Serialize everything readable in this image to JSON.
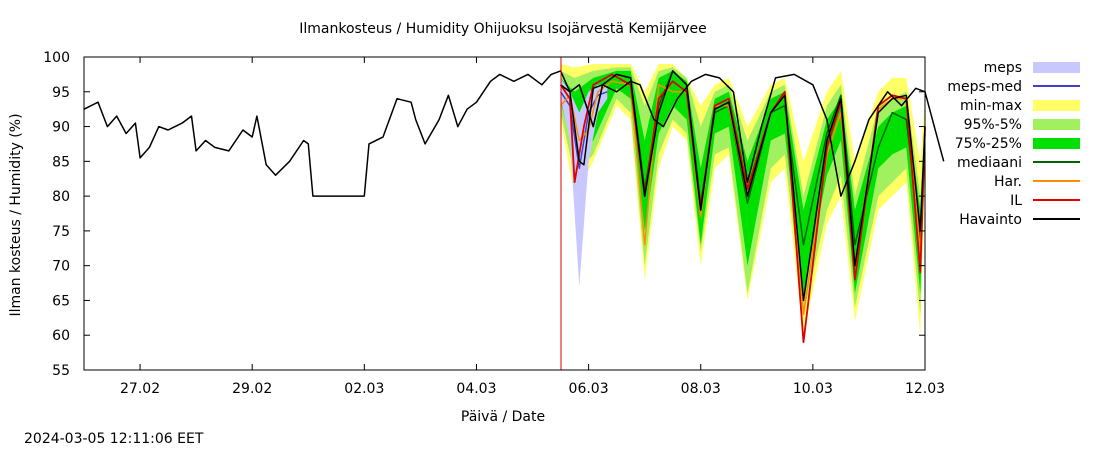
{
  "chart_data": {
    "type": "line",
    "title": "Ilmankosteus / Humidity  Ohijuoksu Isojärvestä Kemijärvee",
    "xlabel": "Päivä / Date",
    "ylabel": "Ilman kosteus / Humidity (%)",
    "ylim": [
      55,
      100
    ],
    "yticks": [
      "55",
      "60",
      "65",
      "70",
      "75",
      "80",
      "85",
      "90",
      "95",
      "100"
    ],
    "xlim": [
      "2024-02-26T00:00",
      "2024-03-12T00:00"
    ],
    "xticks": [
      {
        "date": "2024-02-27T00:00",
        "label": "27.02"
      },
      {
        "date": "2024-02-29T00:00",
        "label": "29.02"
      },
      {
        "date": "2024-03-02T00:00",
        "label": "02.03"
      },
      {
        "date": "2024-03-04T00:00",
        "label": "04.03"
      },
      {
        "date": "2024-03-06T00:00",
        "label": "06.03"
      },
      {
        "date": "2024-03-08T00:00",
        "label": "08.03"
      },
      {
        "date": "2024-03-10T00:00",
        "label": "10.03"
      },
      {
        "date": "2024-03-12T00:00",
        "label": "12.03"
      }
    ],
    "now_marker": "2024-03-05T12:11",
    "grid": false,
    "legend_position": "right",
    "legend": [
      {
        "label": "meps",
        "kind": "band",
        "color": "#c8c8ff"
      },
      {
        "label": "meps-med",
        "kind": "line",
        "color": "#4040c8"
      },
      {
        "label": "min-max",
        "kind": "band",
        "color": "#ffff66"
      },
      {
        "label": "95%-5%",
        "kind": "band",
        "color": "#a0f060"
      },
      {
        "label": "75%-25%",
        "kind": "band",
        "color": "#00e000"
      },
      {
        "label": "mediaani",
        "kind": "line",
        "color": "#006400"
      },
      {
        "label": "Har.",
        "kind": "line",
        "color": "#ff8c00"
      },
      {
        "label": "IL",
        "kind": "line",
        "color": "#e00000"
      },
      {
        "label": "Havainto",
        "kind": "line",
        "color": "#000000"
      }
    ],
    "havainto": [
      [
        "2024-02-26T00:00",
        92.5
      ],
      [
        "2024-02-26T06:00",
        93.5
      ],
      [
        "2024-02-26T10:00",
        90
      ],
      [
        "2024-02-26T14:00",
        91.5
      ],
      [
        "2024-02-26T18:00",
        89
      ],
      [
        "2024-02-26T22:00",
        90.5
      ],
      [
        "2024-02-27T00:00",
        85.5
      ],
      [
        "2024-02-27T04:00",
        87
      ],
      [
        "2024-02-27T08:00",
        90
      ],
      [
        "2024-02-27T12:00",
        89.5
      ],
      [
        "2024-02-27T18:00",
        90.5
      ],
      [
        "2024-02-27T22:00",
        91.5
      ],
      [
        "2024-02-28T00:00",
        86.5
      ],
      [
        "2024-02-28T04:00",
        88
      ],
      [
        "2024-02-28T08:00",
        87
      ],
      [
        "2024-02-28T14:00",
        86.5
      ],
      [
        "2024-02-28T20:00",
        89.5
      ],
      [
        "2024-02-29T00:00",
        88.5
      ],
      [
        "2024-02-29T02:00",
        91.5
      ],
      [
        "2024-02-29T06:00",
        84.5
      ],
      [
        "2024-02-29T10:00",
        83
      ],
      [
        "2024-02-29T16:00",
        85
      ],
      [
        "2024-02-29T22:00",
        88
      ],
      [
        "2024-03-01T00:00",
        87.5
      ],
      [
        "2024-03-01T02:00",
        80
      ],
      [
        "2024-03-01T12:00",
        80
      ],
      [
        "2024-03-01T22:00",
        80
      ],
      [
        "2024-03-02T00:00",
        80
      ],
      [
        "2024-03-02T02:00",
        87.5
      ],
      [
        "2024-03-02T08:00",
        88.5
      ],
      [
        "2024-03-02T14:00",
        94
      ],
      [
        "2024-03-02T20:00",
        93.5
      ],
      [
        "2024-03-02T22:00",
        91
      ],
      [
        "2024-03-03T02:00",
        87.5
      ],
      [
        "2024-03-03T08:00",
        91
      ],
      [
        "2024-03-03T12:00",
        94.5
      ],
      [
        "2024-03-03T16:00",
        90
      ],
      [
        "2024-03-03T20:00",
        92.5
      ],
      [
        "2024-03-04T00:00",
        93.5
      ],
      [
        "2024-03-04T06:00",
        96.5
      ],
      [
        "2024-03-04T10:00",
        97.5
      ],
      [
        "2024-03-04T16:00",
        96.5
      ],
      [
        "2024-03-04T22:00",
        97.5
      ],
      [
        "2024-03-05T04:00",
        96
      ],
      [
        "2024-03-05T08:00",
        97.5
      ],
      [
        "2024-03-05T12:00",
        98
      ],
      [
        "2024-03-05T16:00",
        95
      ],
      [
        "2024-03-05T18:00",
        90
      ],
      [
        "2024-03-05T20:00",
        85
      ],
      [
        "2024-03-05T22:00",
        84.5
      ],
      [
        "2024-03-06T00:00",
        90
      ],
      [
        "2024-03-06T02:00",
        95.5
      ],
      [
        "2024-03-06T06:00",
        96
      ],
      [
        "2024-03-06T12:00",
        95
      ],
      [
        "2024-03-06T18:00",
        96.5
      ],
      [
        "2024-03-06T22:00",
        96
      ],
      [
        "2024-03-07T04:00",
        91
      ],
      [
        "2024-03-07T08:00",
        90
      ],
      [
        "2024-03-07T14:00",
        94
      ],
      [
        "2024-03-07T20:00",
        96.5
      ],
      [
        "2024-03-08T02:00",
        97.5
      ],
      [
        "2024-03-08T08:00",
        97
      ],
      [
        "2024-03-08T14:00",
        95
      ],
      [
        "2024-03-08T20:00",
        82
      ],
      [
        "2024-03-09T02:00",
        90
      ],
      [
        "2024-03-09T08:00",
        97
      ],
      [
        "2024-03-09T16:00",
        97.5
      ],
      [
        "2024-03-10T00:00",
        96
      ],
      [
        "2024-03-10T06:00",
        91
      ],
      [
        "2024-03-10T12:00",
        80
      ],
      [
        "2024-03-10T18:00",
        85
      ],
      [
        "2024-03-11T00:00",
        91
      ],
      [
        "2024-03-11T08:00",
        95
      ],
      [
        "2024-03-11T14:00",
        93
      ],
      [
        "2024-03-11T20:00",
        95.5
      ],
      [
        "2024-03-12T00:00",
        95
      ],
      [
        "2024-03-12T04:00",
        90
      ],
      [
        "2024-03-12T08:00",
        85
      ]
    ],
    "mediaani": [
      [
        "2024-03-05T12:00",
        96
      ],
      [
        "2024-03-05T16:00",
        95
      ],
      [
        "2024-03-05T20:00",
        96
      ],
      [
        "2024-03-06T02:00",
        90
      ],
      [
        "2024-03-06T06:00",
        96
      ],
      [
        "2024-03-06T12:00",
        97.5
      ],
      [
        "2024-03-06T18:00",
        97
      ],
      [
        "2024-03-07T00:00",
        81
      ],
      [
        "2024-03-07T06:00",
        93
      ],
      [
        "2024-03-07T12:00",
        98
      ],
      [
        "2024-03-07T18:00",
        96
      ],
      [
        "2024-03-08T00:00",
        79
      ],
      [
        "2024-03-08T06:00",
        92
      ],
      [
        "2024-03-08T12:00",
        93
      ],
      [
        "2024-03-08T20:00",
        79
      ],
      [
        "2024-03-09T06:00",
        92
      ],
      [
        "2024-03-09T12:00",
        93
      ],
      [
        "2024-03-09T20:00",
        73
      ],
      [
        "2024-03-10T06:00",
        89
      ],
      [
        "2024-03-10T12:00",
        94.5
      ],
      [
        "2024-03-10T18:00",
        73
      ],
      [
        "2024-03-11T04:00",
        87
      ],
      [
        "2024-03-11T10:00",
        92
      ],
      [
        "2024-03-11T16:00",
        91
      ],
      [
        "2024-03-11T22:00",
        74
      ],
      [
        "2024-03-12T00:00",
        89
      ]
    ],
    "havainto_forecast": [
      [
        "2024-03-05T12:00",
        96
      ],
      [
        "2024-03-05T16:00",
        95
      ],
      [
        "2024-03-05T20:00",
        96
      ],
      [
        "2024-03-06T02:00",
        90
      ],
      [
        "2024-03-06T06:00",
        96
      ],
      [
        "2024-03-06T12:00",
        97.5
      ],
      [
        "2024-03-06T18:00",
        97
      ],
      [
        "2024-03-07T00:00",
        80
      ],
      [
        "2024-03-07T06:00",
        92
      ],
      [
        "2024-03-07T12:00",
        98
      ],
      [
        "2024-03-07T18:00",
        96
      ],
      [
        "2024-03-08T00:00",
        78
      ],
      [
        "2024-03-08T06:00",
        92.5
      ],
      [
        "2024-03-08T12:00",
        93.5
      ],
      [
        "2024-03-08T20:00",
        80
      ],
      [
        "2024-03-09T06:00",
        92
      ],
      [
        "2024-03-09T12:00",
        94.5
      ],
      [
        "2024-03-09T20:00",
        65
      ],
      [
        "2024-03-10T06:00",
        88
      ],
      [
        "2024-03-10T12:00",
        94
      ],
      [
        "2024-03-10T18:00",
        70
      ],
      [
        "2024-03-11T04:00",
        92
      ],
      [
        "2024-03-11T10:00",
        94
      ],
      [
        "2024-03-11T16:00",
        94.5
      ],
      [
        "2024-03-11T22:00",
        75
      ],
      [
        "2024-03-12T00:00",
        90
      ]
    ],
    "IL": [
      [
        "2024-03-05T12:00",
        96
      ],
      [
        "2024-03-05T16:00",
        94
      ],
      [
        "2024-03-05T18:00",
        82
      ],
      [
        "2024-03-05T22:00",
        90
      ],
      [
        "2024-03-06T02:00",
        96
      ],
      [
        "2024-03-06T10:00",
        97.5
      ],
      [
        "2024-03-06T18:00",
        96
      ],
      [
        "2024-03-07T00:00",
        80
      ],
      [
        "2024-03-07T06:00",
        94
      ],
      [
        "2024-03-07T12:00",
        96.5
      ],
      [
        "2024-03-07T18:00",
        95
      ],
      [
        "2024-03-08T00:00",
        78
      ],
      [
        "2024-03-08T06:00",
        93
      ],
      [
        "2024-03-08T12:00",
        94
      ],
      [
        "2024-03-08T20:00",
        81
      ],
      [
        "2024-03-09T06:00",
        92
      ],
      [
        "2024-03-09T12:00",
        95
      ],
      [
        "2024-03-09T20:00",
        59
      ],
      [
        "2024-03-10T06:00",
        87
      ],
      [
        "2024-03-10T12:00",
        93.5
      ],
      [
        "2024-03-10T18:00",
        68
      ],
      [
        "2024-03-11T04:00",
        93
      ],
      [
        "2024-03-11T10:00",
        94.5
      ],
      [
        "2024-03-11T16:00",
        94
      ],
      [
        "2024-03-11T22:00",
        69
      ],
      [
        "2024-03-12T00:00",
        90
      ]
    ],
    "Har": [
      [
        "2024-03-05T12:00",
        93
      ],
      [
        "2024-03-05T16:00",
        94.5
      ],
      [
        "2024-03-05T20:00",
        88
      ],
      [
        "2024-03-06T00:00",
        89.5
      ],
      [
        "2024-03-06T04:00",
        95
      ],
      [
        "2024-03-06T10:00",
        96.5
      ],
      [
        "2024-03-06T18:00",
        96
      ],
      [
        "2024-03-07T00:00",
        73
      ],
      [
        "2024-03-07T06:00",
        96
      ],
      [
        "2024-03-07T12:00",
        95
      ],
      [
        "2024-03-07T18:00",
        95
      ],
      [
        "2024-03-08T00:00",
        77
      ],
      [
        "2024-03-08T06:00",
        93
      ],
      [
        "2024-03-08T12:00",
        93
      ],
      [
        "2024-03-08T20:00",
        80
      ],
      [
        "2024-03-09T06:00",
        92
      ],
      [
        "2024-03-09T12:00",
        94.5
      ],
      [
        "2024-03-09T20:00",
        63
      ],
      [
        "2024-03-10T06:00",
        86
      ],
      [
        "2024-03-10T12:00",
        92
      ],
      [
        "2024-03-10T18:00",
        70
      ],
      [
        "2024-03-11T04:00",
        92.5
      ],
      [
        "2024-03-11T10:00",
        94
      ],
      [
        "2024-03-11T16:00",
        94
      ],
      [
        "2024-03-11T22:00",
        72
      ],
      [
        "2024-03-12T00:00",
        90
      ]
    ],
    "meps_med": [
      [
        "2024-03-05T12:00",
        95
      ],
      [
        "2024-03-05T16:00",
        93
      ],
      [
        "2024-03-05T20:00",
        84
      ],
      [
        "2024-03-06T00:00",
        92
      ],
      [
        "2024-03-06T04:00",
        94.5
      ],
      [
        "2024-03-06T08:00",
        95
      ]
    ],
    "band_minmax": [
      [
        "2024-03-05T12:00",
        91,
        99
      ],
      [
        "2024-03-05T18:00",
        80,
        98.5
      ],
      [
        "2024-03-06T02:00",
        85,
        99
      ],
      [
        "2024-03-06T12:00",
        93,
        99
      ],
      [
        "2024-03-06T18:00",
        91,
        99
      ],
      [
        "2024-03-07T00:00",
        68,
        95
      ],
      [
        "2024-03-07T06:00",
        84,
        99
      ],
      [
        "2024-03-07T12:00",
        90,
        99
      ],
      [
        "2024-03-07T18:00",
        88,
        97
      ],
      [
        "2024-03-08T00:00",
        70,
        93
      ],
      [
        "2024-03-08T06:00",
        84,
        96
      ],
      [
        "2024-03-08T12:00",
        86,
        97
      ],
      [
        "2024-03-08T20:00",
        65,
        90
      ],
      [
        "2024-03-09T06:00",
        82,
        96
      ],
      [
        "2024-03-09T12:00",
        84,
        97
      ],
      [
        "2024-03-09T20:00",
        60,
        85
      ],
      [
        "2024-03-10T06:00",
        76,
        95
      ],
      [
        "2024-03-10T12:00",
        80,
        98
      ],
      [
        "2024-03-10T18:00",
        62,
        85
      ],
      [
        "2024-03-11T04:00",
        78,
        95
      ],
      [
        "2024-03-11T10:00",
        80,
        97
      ],
      [
        "2024-03-11T16:00",
        82,
        97
      ],
      [
        "2024-03-11T22:00",
        60,
        85
      ],
      [
        "2024-03-12T00:00",
        84,
        94
      ]
    ],
    "band_95_5": [
      [
        "2024-03-05T12:00",
        92,
        98
      ],
      [
        "2024-03-05T18:00",
        83,
        97
      ],
      [
        "2024-03-06T02:00",
        86,
        98
      ],
      [
        "2024-03-06T12:00",
        94,
        98.5
      ],
      [
        "2024-03-06T18:00",
        92,
        98.5
      ],
      [
        "2024-03-07T00:00",
        70,
        93
      ],
      [
        "2024-03-07T06:00",
        86,
        98
      ],
      [
        "2024-03-07T12:00",
        91,
        98.5
      ],
      [
        "2024-03-07T18:00",
        89,
        97
      ],
      [
        "2024-03-08T00:00",
        72,
        90
      ],
      [
        "2024-03-08T06:00",
        86,
        95
      ],
      [
        "2024-03-08T12:00",
        87,
        96
      ],
      [
        "2024-03-08T20:00",
        66,
        88
      ],
      [
        "2024-03-09T06:00",
        84,
        95
      ],
      [
        "2024-03-09T12:00",
        86,
        96
      ],
      [
        "2024-03-09T20:00",
        63,
        80
      ],
      [
        "2024-03-10T06:00",
        78,
        93
      ],
      [
        "2024-03-10T12:00",
        83,
        96
      ],
      [
        "2024-03-10T18:00",
        64,
        80
      ],
      [
        "2024-03-11T04:00",
        80,
        93
      ],
      [
        "2024-03-11T10:00",
        82,
        94
      ],
      [
        "2024-03-11T16:00",
        84,
        95
      ],
      [
        "2024-03-11T22:00",
        63,
        80
      ],
      [
        "2024-03-12T00:00",
        85,
        92
      ]
    ],
    "band_75_25": [
      [
        "2024-03-05T12:00",
        93.5,
        97
      ],
      [
        "2024-03-05T18:00",
        86,
        95
      ],
      [
        "2024-03-06T02:00",
        88,
        97
      ],
      [
        "2024-03-06T12:00",
        95.5,
        98
      ],
      [
        "2024-03-06T18:00",
        94,
        98
      ],
      [
        "2024-03-07T00:00",
        75,
        88
      ],
      [
        "2024-03-07T06:00",
        89,
        97
      ],
      [
        "2024-03-07T12:00",
        93,
        98
      ],
      [
        "2024-03-07T18:00",
        91,
        96.5
      ],
      [
        "2024-03-08T00:00",
        73,
        84
      ],
      [
        "2024-03-08T06:00",
        89,
        94
      ],
      [
        "2024-03-08T12:00",
        90,
        95
      ],
      [
        "2024-03-08T20:00",
        70,
        85
      ],
      [
        "2024-03-09T06:00",
        88,
        94
      ],
      [
        "2024-03-09T12:00",
        89,
        95
      ],
      [
        "2024-03-09T20:00",
        66,
        78
      ],
      [
        "2024-03-10T06:00",
        83,
        91
      ],
      [
        "2024-03-10T12:00",
        88,
        94
      ],
      [
        "2024-03-10T18:00",
        66,
        78
      ],
      [
        "2024-03-11T04:00",
        84,
        90
      ],
      [
        "2024-03-11T10:00",
        86,
        92
      ],
      [
        "2024-03-11T16:00",
        87,
        93
      ],
      [
        "2024-03-11T22:00",
        66,
        78
      ],
      [
        "2024-03-12T00:00",
        87,
        91
      ]
    ],
    "band_meps": [
      [
        "2024-03-05T12:00",
        94,
        97
      ],
      [
        "2024-03-05T16:00",
        88,
        95
      ],
      [
        "2024-03-05T20:00",
        67,
        92
      ],
      [
        "2024-03-06T00:00",
        85,
        95
      ],
      [
        "2024-03-06T04:00",
        92,
        96
      ],
      [
        "2024-03-06T08:00",
        94,
        96
      ]
    ]
  },
  "footer": {
    "timestamp": "2024-03-05 12:11:06 EET"
  }
}
